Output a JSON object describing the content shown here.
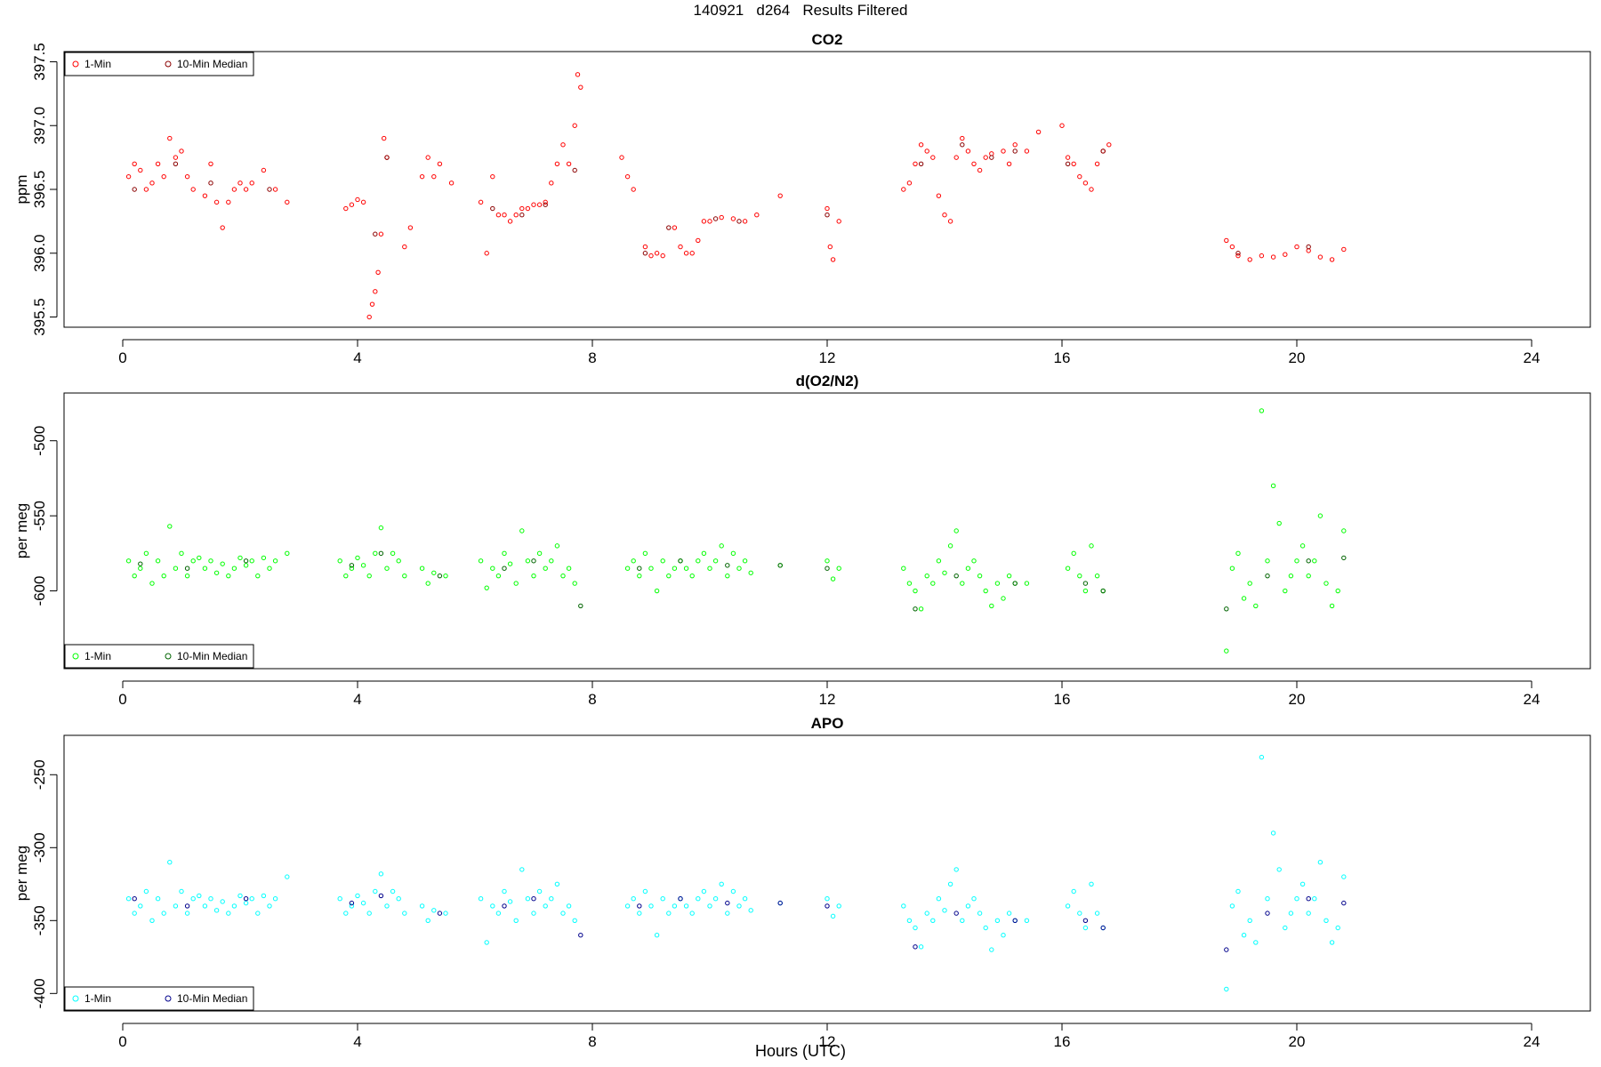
{
  "title": "140921   d264   Results Filtered",
  "xlabel": "Hours (UTC)",
  "colors": {
    "co2_1min": "#ff0000",
    "co2_median": "#8b0000",
    "o2_1min": "#00ff00",
    "o2_median": "#006400",
    "apo_1min": "#00ffff",
    "apo_median": "#00008b"
  },
  "chart_data": [
    {
      "type": "scatter",
      "title": "CO2",
      "ylabel": "ppm",
      "xlim": [
        0,
        24
      ],
      "ylim": [
        395.5,
        397.5
      ],
      "xticks": [
        "0",
        "4",
        "8",
        "12",
        "16",
        "20",
        "24"
      ],
      "yticks": [
        "395.5",
        "396.0",
        "396.5",
        "397.0",
        "397.5"
      ],
      "legend": {
        "placement": "top-left",
        "entries": [
          "1-Min",
          "10-Min Median"
        ]
      },
      "series": [
        {
          "name": "1-Min",
          "color": "#ff0000",
          "x": [
            0.1,
            0.2,
            0.3,
            0.4,
            0.5,
            0.6,
            0.7,
            0.8,
            0.9,
            1.0,
            1.1,
            1.2,
            1.4,
            1.5,
            1.6,
            1.7,
            1.8,
            1.9,
            2.0,
            2.1,
            2.2,
            2.4,
            2.6,
            2.8,
            3.8,
            3.9,
            4.0,
            4.1,
            4.2,
            4.25,
            4.3,
            4.35,
            4.4,
            4.45,
            4.5,
            4.8,
            4.9,
            5.1,
            5.2,
            5.3,
            5.4,
            5.6,
            6.1,
            6.2,
            6.3,
            6.4,
            6.5,
            6.6,
            6.7,
            6.8,
            6.9,
            7.0,
            7.1,
            7.2,
            7.3,
            7.4,
            7.5,
            7.6,
            7.7,
            7.75,
            7.8,
            8.5,
            8.6,
            8.7,
            8.9,
            9.0,
            9.1,
            9.2,
            9.4,
            9.5,
            9.6,
            9.7,
            9.8,
            9.9,
            10.0,
            10.2,
            10.4,
            10.6,
            10.8,
            11.2,
            12.0,
            12.05,
            12.1,
            12.2,
            13.3,
            13.4,
            13.5,
            13.6,
            13.7,
            13.8,
            13.9,
            14.0,
            14.1,
            14.2,
            14.3,
            14.4,
            14.5,
            14.6,
            14.7,
            14.8,
            15.0,
            15.1,
            15.2,
            15.4,
            15.6,
            16.0,
            16.1,
            16.2,
            16.3,
            16.4,
            16.5,
            16.6,
            16.7,
            16.8,
            18.8,
            18.9,
            19.0,
            19.2,
            19.4,
            19.6,
            19.8,
            20.0,
            20.2,
            20.4,
            20.6,
            20.8
          ],
          "y": [
            396.6,
            396.7,
            396.65,
            396.5,
            396.55,
            396.7,
            396.6,
            396.9,
            396.75,
            396.8,
            396.6,
            396.5,
            396.45,
            396.7,
            396.4,
            396.2,
            396.4,
            396.5,
            396.55,
            396.5,
            396.55,
            396.65,
            396.5,
            396.4,
            396.35,
            396.38,
            396.42,
            396.4,
            395.5,
            395.6,
            395.7,
            395.85,
            396.15,
            396.9,
            396.75,
            396.05,
            396.2,
            396.6,
            396.75,
            396.6,
            396.7,
            396.55,
            396.4,
            396.0,
            396.6,
            396.3,
            396.3,
            396.25,
            396.3,
            396.35,
            396.35,
            396.38,
            396.38,
            396.4,
            396.55,
            396.7,
            396.85,
            396.7,
            397.0,
            397.4,
            397.3,
            396.75,
            396.6,
            396.5,
            396.05,
            395.98,
            396.0,
            395.98,
            396.2,
            396.05,
            396.0,
            396.0,
            396.1,
            396.25,
            396.25,
            396.28,
            396.27,
            396.25,
            396.3,
            396.45,
            396.35,
            396.05,
            395.95,
            396.25,
            396.5,
            396.55,
            396.7,
            396.85,
            396.8,
            396.75,
            396.45,
            396.3,
            396.25,
            396.75,
            396.9,
            396.8,
            396.7,
            396.65,
            396.75,
            396.78,
            396.8,
            396.7,
            396.85,
            396.8,
            396.95,
            397.0,
            396.75,
            396.7,
            396.6,
            396.55,
            396.5,
            396.7,
            396.8,
            396.85,
            396.1,
            396.05,
            395.98,
            395.95,
            395.98,
            395.97,
            395.99,
            396.05,
            396.02,
            395.97,
            395.95,
            396.03
          ]
        },
        {
          "name": "10-Min Median",
          "color": "#8b0000",
          "x": [
            0.2,
            0.9,
            1.5,
            2.5,
            4.3,
            4.5,
            6.3,
            6.8,
            7.2,
            7.7,
            8.9,
            9.3,
            10.1,
            10.5,
            12.0,
            13.6,
            14.3,
            14.8,
            15.2,
            16.1,
            16.7,
            19.0,
            20.2
          ],
          "y": [
            396.5,
            396.7,
            396.55,
            396.5,
            396.15,
            396.75,
            396.35,
            396.3,
            396.38,
            396.65,
            396.0,
            396.2,
            396.27,
            396.25,
            396.3,
            396.7,
            396.85,
            396.75,
            396.8,
            396.7,
            396.8,
            396.0,
            396.05
          ]
        }
      ]
    },
    {
      "type": "scatter",
      "title": "d(O2/N2)",
      "ylabel": "per meg",
      "xlim": [
        0,
        24
      ],
      "ylim": [
        -645,
        -475
      ],
      "xticks": [
        "0",
        "4",
        "8",
        "12",
        "16",
        "20",
        "24"
      ],
      "yticks": [
        "-600",
        "-550",
        "-500"
      ],
      "legend": {
        "placement": "bottom-left",
        "entries": [
          "1-Min",
          "10-Min Median"
        ]
      },
      "series": [
        {
          "name": "1-Min",
          "color": "#00ff00",
          "x": [
            0.1,
            0.2,
            0.3,
            0.4,
            0.5,
            0.6,
            0.7,
            0.8,
            0.9,
            1.0,
            1.1,
            1.2,
            1.3,
            1.4,
            1.5,
            1.6,
            1.7,
            1.8,
            1.9,
            2.0,
            2.1,
            2.2,
            2.3,
            2.4,
            2.5,
            2.6,
            2.8,
            3.7,
            3.8,
            3.9,
            4.0,
            4.1,
            4.2,
            4.3,
            4.4,
            4.5,
            4.6,
            4.7,
            4.8,
            5.1,
            5.2,
            5.3,
            5.5,
            6.1,
            6.2,
            6.3,
            6.4,
            6.5,
            6.6,
            6.7,
            6.8,
            6.9,
            7.0,
            7.1,
            7.2,
            7.3,
            7.4,
            7.5,
            7.6,
            7.7,
            8.6,
            8.7,
            8.8,
            8.9,
            9.0,
            9.1,
            9.2,
            9.3,
            9.4,
            9.5,
            9.6,
            9.7,
            9.8,
            9.9,
            10.0,
            10.1,
            10.2,
            10.3,
            10.4,
            10.5,
            10.6,
            10.7,
            11.2,
            12.0,
            12.1,
            12.2,
            13.3,
            13.4,
            13.5,
            13.6,
            13.7,
            13.8,
            13.9,
            14.0,
            14.1,
            14.2,
            14.3,
            14.4,
            14.5,
            14.6,
            14.7,
            14.8,
            14.9,
            15.0,
            15.1,
            15.2,
            15.4,
            16.1,
            16.2,
            16.3,
            16.4,
            16.5,
            16.6,
            16.7,
            18.8,
            18.9,
            19.0,
            19.1,
            19.2,
            19.3,
            19.4,
            19.5,
            19.6,
            19.7,
            19.8,
            19.9,
            20.0,
            20.1,
            20.2,
            20.3,
            20.4,
            20.5,
            20.6,
            20.7,
            20.8
          ],
          "y": [
            -580,
            -590,
            -585,
            -575,
            -595,
            -580,
            -590,
            -557,
            -585,
            -575,
            -590,
            -580,
            -578,
            -585,
            -580,
            -588,
            -582,
            -590,
            -585,
            -578,
            -583,
            -580,
            -590,
            -578,
            -585,
            -580,
            -575,
            -580,
            -590,
            -585,
            -578,
            -583,
            -590,
            -575,
            -558,
            -585,
            -575,
            -580,
            -590,
            -585,
            -595,
            -588,
            -590,
            -580,
            -598,
            -585,
            -590,
            -575,
            -582,
            -595,
            -560,
            -580,
            -590,
            -575,
            -585,
            -580,
            -570,
            -590,
            -585,
            -595,
            -585,
            -580,
            -590,
            -575,
            -585,
            -600,
            -580,
            -590,
            -585,
            -580,
            -585,
            -590,
            -580,
            -575,
            -585,
            -580,
            -570,
            -590,
            -575,
            -585,
            -580,
            -588,
            -583,
            -580,
            -592,
            -585,
            -585,
            -595,
            -600,
            -612,
            -590,
            -595,
            -580,
            -588,
            -570,
            -560,
            -595,
            -585,
            -580,
            -590,
            -600,
            -610,
            -595,
            -605,
            -590,
            -595,
            -595,
            -585,
            -575,
            -590,
            -600,
            -570,
            -590,
            -600,
            -640,
            -585,
            -575,
            -605,
            -595,
            -610,
            -480,
            -580,
            -530,
            -555,
            -600,
            -590,
            -580,
            -570,
            -590,
            -580,
            -550,
            -595,
            -610,
            -600,
            -560
          ]
        },
        {
          "name": "10-Min Median",
          "color": "#006400",
          "x": [
            0.3,
            1.1,
            2.1,
            3.9,
            4.4,
            5.4,
            6.5,
            7.0,
            7.8,
            8.8,
            9.5,
            10.3,
            11.2,
            12.0,
            13.5,
            14.2,
            15.2,
            16.4,
            16.7,
            18.8,
            19.5,
            20.2,
            20.8
          ],
          "y": [
            -582,
            -585,
            -580,
            -583,
            -575,
            -590,
            -585,
            -580,
            -610,
            -585,
            -580,
            -583,
            -583,
            -585,
            -612,
            -590,
            -595,
            -595,
            -600,
            -612,
            -590,
            -580,
            -578
          ]
        }
      ]
    },
    {
      "type": "scatter",
      "title": "APO",
      "ylabel": "per meg",
      "xlim": [
        0,
        24
      ],
      "ylim": [
        -405,
        -230
      ],
      "xticks": [
        "0",
        "4",
        "8",
        "12",
        "16",
        "20",
        "24"
      ],
      "yticks": [
        "-400",
        "-350",
        "-300",
        "-250"
      ],
      "legend": {
        "placement": "bottom-left",
        "entries": [
          "1-Min",
          "10-Min Median"
        ]
      },
      "series": [
        {
          "name": "1-Min",
          "color": "#00ffff",
          "x": [
            0.1,
            0.2,
            0.3,
            0.4,
            0.5,
            0.6,
            0.7,
            0.8,
            0.9,
            1.0,
            1.1,
            1.2,
            1.3,
            1.4,
            1.5,
            1.6,
            1.7,
            1.8,
            1.9,
            2.0,
            2.1,
            2.2,
            2.3,
            2.4,
            2.5,
            2.6,
            2.8,
            3.7,
            3.8,
            3.9,
            4.0,
            4.1,
            4.2,
            4.3,
            4.4,
            4.5,
            4.6,
            4.7,
            4.8,
            5.1,
            5.2,
            5.3,
            5.5,
            6.1,
            6.2,
            6.3,
            6.4,
            6.5,
            6.6,
            6.7,
            6.8,
            6.9,
            7.0,
            7.1,
            7.2,
            7.3,
            7.4,
            7.5,
            7.6,
            7.7,
            8.6,
            8.7,
            8.8,
            8.9,
            9.0,
            9.1,
            9.2,
            9.3,
            9.4,
            9.5,
            9.6,
            9.7,
            9.8,
            9.9,
            10.0,
            10.1,
            10.2,
            10.3,
            10.4,
            10.5,
            10.6,
            10.7,
            11.2,
            12.0,
            12.1,
            12.2,
            13.3,
            13.4,
            13.5,
            13.6,
            13.7,
            13.8,
            13.9,
            14.0,
            14.1,
            14.2,
            14.3,
            14.4,
            14.5,
            14.6,
            14.7,
            14.8,
            14.9,
            15.0,
            15.1,
            15.2,
            15.4,
            16.1,
            16.2,
            16.3,
            16.4,
            16.5,
            16.6,
            16.7,
            18.8,
            18.9,
            19.0,
            19.1,
            19.2,
            19.3,
            19.4,
            19.5,
            19.6,
            19.7,
            19.8,
            19.9,
            20.0,
            20.1,
            20.2,
            20.3,
            20.4,
            20.5,
            20.6,
            20.7,
            20.8
          ],
          "y": [
            -335,
            -345,
            -340,
            -330,
            -350,
            -335,
            -345,
            -310,
            -340,
            -330,
            -345,
            -335,
            -333,
            -340,
            -335,
            -343,
            -337,
            -345,
            -340,
            -333,
            -338,
            -335,
            -345,
            -333,
            -340,
            -335,
            -320,
            -335,
            -345,
            -340,
            -333,
            -338,
            -345,
            -330,
            -318,
            -340,
            -330,
            -335,
            -345,
            -340,
            -350,
            -343,
            -345,
            -335,
            -365,
            -340,
            -345,
            -330,
            -337,
            -350,
            -315,
            -335,
            -345,
            -330,
            -340,
            -335,
            -325,
            -345,
            -340,
            -350,
            -340,
            -335,
            -345,
            -330,
            -340,
            -360,
            -335,
            -345,
            -340,
            -335,
            -340,
            -345,
            -335,
            -330,
            -340,
            -335,
            -325,
            -345,
            -330,
            -340,
            -335,
            -343,
            -338,
            -335,
            -347,
            -340,
            -340,
            -350,
            -355,
            -368,
            -345,
            -350,
            -335,
            -343,
            -325,
            -315,
            -350,
            -340,
            -335,
            -345,
            -355,
            -370,
            -350,
            -360,
            -345,
            -350,
            -350,
            -340,
            -330,
            -345,
            -355,
            -325,
            -345,
            -355,
            -397,
            -340,
            -330,
            -360,
            -350,
            -365,
            -238,
            -335,
            -290,
            -315,
            -355,
            -345,
            -335,
            -325,
            -345,
            -335,
            -310,
            -350,
            -365,
            -355,
            -320
          ]
        },
        {
          "name": "10-Min Median",
          "color": "#00008b",
          "x": [
            0.2,
            1.1,
            2.1,
            3.9,
            4.4,
            5.4,
            6.5,
            7.0,
            7.8,
            8.8,
            9.5,
            10.3,
            11.2,
            12.0,
            13.5,
            14.2,
            15.2,
            16.4,
            16.7,
            18.8,
            19.5,
            20.2,
            20.8
          ],
          "y": [
            -335,
            -340,
            -335,
            -338,
            -333,
            -345,
            -340,
            -335,
            -360,
            -340,
            -335,
            -338,
            -338,
            -340,
            -368,
            -345,
            -350,
            -350,
            -355,
            -370,
            -345,
            -335,
            -338
          ]
        }
      ]
    }
  ]
}
